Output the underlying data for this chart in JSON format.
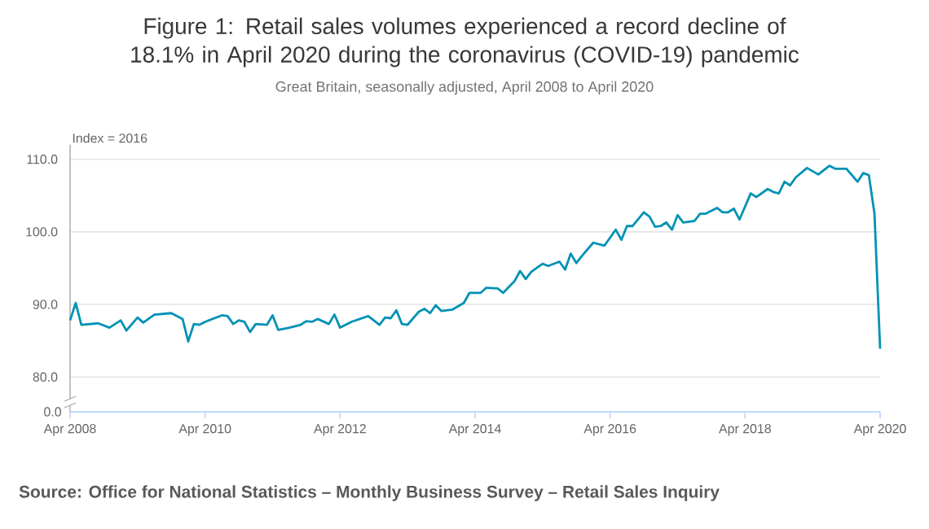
{
  "chart_data": [
    {
      "type": "line",
      "title": "Figure 1: Retail sales volumes experienced a record decline of 18.1% in April 2020 during the coronavirus (COVID-19) pandemic",
      "subtitle": "Great Britain, seasonally adjusted, April 2008 to April 2020",
      "ylabel": "Index = 2016",
      "annotations": [
        "Source: Office for National Statistics – Monthly Business Survey – Retail Sales Inquiry"
      ],
      "x": [
        "2008-04",
        "2008-05",
        "2008-06",
        "2008-09",
        "2008-11",
        "2009-01",
        "2009-02",
        "2009-04",
        "2009-05",
        "2009-07",
        "2009-10",
        "2009-12",
        "2010-01",
        "2010-02",
        "2010-03",
        "2010-04",
        "2010-07",
        "2010-08",
        "2010-09",
        "2010-10",
        "2010-11",
        "2010-12",
        "2011-01",
        "2011-03",
        "2011-04",
        "2011-05",
        "2011-07",
        "2011-09",
        "2011-10",
        "2011-11",
        "2011-12",
        "2012-02",
        "2012-03",
        "2012-04",
        "2012-06",
        "2012-09",
        "2012-11",
        "2012-12",
        "2013-01",
        "2013-02",
        "2013-03",
        "2013-04",
        "2013-06",
        "2013-07",
        "2013-08",
        "2013-09",
        "2013-10",
        "2013-12",
        "2014-02",
        "2014-03",
        "2014-05",
        "2014-06",
        "2014-08",
        "2014-09",
        "2014-11",
        "2014-12",
        "2015-01",
        "2015-02",
        "2015-04",
        "2015-05",
        "2015-07",
        "2015-08",
        "2015-09",
        "2015-10",
        "2015-11",
        "2016-01",
        "2016-03",
        "2016-05",
        "2016-06",
        "2016-07",
        "2016-08",
        "2016-10",
        "2016-11",
        "2016-12",
        "2017-01",
        "2017-02",
        "2017-03",
        "2017-04",
        "2017-05",
        "2017-07",
        "2017-08",
        "2017-09",
        "2017-11",
        "2017-12",
        "2018-01",
        "2018-02",
        "2018-03",
        "2018-05",
        "2018-06",
        "2018-08",
        "2018-09",
        "2018-10",
        "2018-11",
        "2018-12",
        "2019-01",
        "2019-03",
        "2019-05",
        "2019-07",
        "2019-08",
        "2019-10",
        "2019-12",
        "2020-01",
        "2020-02",
        "2020-03",
        "2020-04"
      ],
      "series": [
        {
          "color": "#0092b5",
          "values": [
            87.8,
            90.2,
            87.2,
            87.4,
            86.8,
            87.8,
            86.4,
            88.2,
            87.5,
            88.6,
            88.8,
            88.0,
            84.9,
            87.3,
            87.2,
            87.6,
            88.5,
            88.4,
            87.3,
            87.8,
            87.6,
            86.2,
            87.3,
            87.2,
            88.5,
            86.5,
            86.8,
            87.2,
            87.7,
            87.6,
            88.0,
            87.3,
            88.6,
            86.8,
            87.6,
            88.4,
            87.2,
            88.2,
            88.1,
            89.2,
            87.3,
            87.2,
            89.0,
            89.4,
            88.8,
            89.9,
            89.1,
            89.3,
            90.2,
            91.6,
            91.6,
            92.3,
            92.2,
            91.6,
            93.2,
            94.6,
            93.5,
            94.5,
            95.6,
            95.3,
            95.9,
            94.8,
            97.0,
            95.7,
            96.7,
            98.5,
            98.1,
            100.3,
            98.9,
            100.8,
            100.8,
            102.7,
            102.1,
            100.7,
            100.8,
            101.3,
            100.3,
            102.3,
            101.3,
            101.5,
            102.5,
            102.5,
            103.3,
            102.7,
            102.7,
            103.2,
            101.7,
            105.3,
            104.8,
            105.9,
            105.5,
            105.3,
            106.9,
            106.4,
            107.5,
            108.8,
            107.9,
            109.1,
            108.7,
            108.7,
            106.9,
            108.1,
            107.8,
            102.5,
            83.9
          ]
        }
      ],
      "xlim": [
        "2008-04",
        "2020-04"
      ],
      "ylim": [
        77,
        112
      ],
      "yticks": [
        {
          "value": 80,
          "label": "80.0"
        },
        {
          "value": 90,
          "label": "90.0"
        },
        {
          "value": 100,
          "label": "100.0"
        },
        {
          "value": 110,
          "label": "110.0"
        }
      ],
      "grid": "y",
      "marker": "none",
      "line_style": "solid",
      "xticks": [
        {
          "value": "2008-04",
          "label": "Apr 2008"
        },
        {
          "value": "2010-04",
          "label": "Apr 2010"
        },
        {
          "value": "2012-04",
          "label": "Apr 2012"
        },
        {
          "value": "2014-04",
          "label": "Apr 2014"
        },
        {
          "value": "2016-04",
          "label": "Apr 2016"
        },
        {
          "value": "2018-04",
          "label": "Apr 2018"
        },
        {
          "value": "2020-04",
          "label": "Apr 2020"
        }
      ]
    },
    {
      "type": "other",
      "annotations": [
        "0.0"
      ]
    }
  ]
}
